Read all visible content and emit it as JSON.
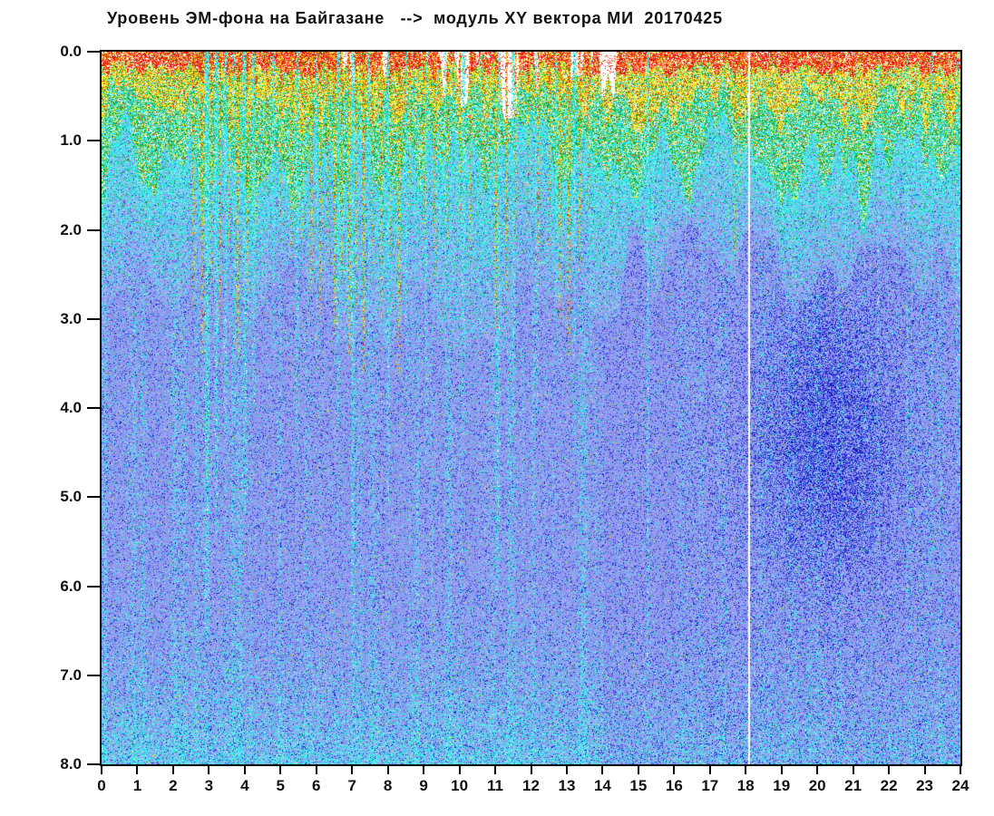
{
  "title": "Уровень ЭМ-фона на Байгазане   -->  модуль XY вектора МИ  20170425",
  "chart_data": {
    "type": "heatmap",
    "title": "Уровень ЭМ-фона на Байгазане   -->  модуль XY вектора МИ  20170425",
    "station": "Байгазане",
    "quantity": "модуль XY вектора МИ",
    "date": "20170425",
    "grid": false,
    "legend": false,
    "x_axis": {
      "min": 0,
      "max": 24,
      "ticks": [
        "0",
        "1",
        "2",
        "3",
        "4",
        "5",
        "6",
        "7",
        "8",
        "9",
        "10",
        "11",
        "12",
        "13",
        "14",
        "15",
        "16",
        "17",
        "18",
        "19",
        "20",
        "21",
        "22",
        "23",
        "24"
      ]
    },
    "y_axis": {
      "min": 0.0,
      "max": 8.0,
      "ticks": [
        "0.0",
        "1.0",
        "2.0",
        "3.0",
        "4.0",
        "5.0",
        "6.0",
        "7.0",
        "8.0"
      ]
    },
    "seed": 1234567,
    "gap_hour": 18.08,
    "gap_halfwidth": 0.03,
    "palette": {
      "white": "#ffffff",
      "red": "#ee1414",
      "orange": "#ff9212",
      "yellow": "#ffe71c",
      "green": "#1ea41e",
      "cyan": "#22e7e7",
      "cyan_light": "#84e9ee",
      "peri": "#8c93ec",
      "peri_light": "#a3a9f2",
      "peri_dim": "#7d85e8",
      "blue_dot": "#2b2fd9",
      "blue_dark": "#1212bd"
    },
    "bands_depth": {
      "red_top": [
        0.07,
        0.33
      ],
      "yellow": [
        0.22,
        0.9
      ],
      "green": [
        0.45,
        1.8
      ],
      "cyan_end_left": [
        2.3,
        3.6
      ],
      "cyan_end_right": [
        1.9,
        2.8
      ]
    },
    "white_gap_ranges": [
      [
        6.7,
        7.05,
        0.35
      ],
      [
        7.7,
        8.05,
        0.4
      ],
      [
        9.3,
        11.75,
        0.75
      ],
      [
        11.9,
        12.25,
        0.45
      ],
      [
        13.1,
        14.45,
        0.6
      ]
    ],
    "streak_fields": [
      "hour",
      "halfwidth_px",
      "depth",
      "strength"
    ],
    "warm_streaks": [
      [
        2.55,
        1,
        2.9,
        1
      ],
      [
        2.8,
        1.5,
        3.4,
        1
      ],
      [
        3.05,
        1,
        2.6,
        0.9
      ],
      [
        3.3,
        1,
        3.1,
        1
      ],
      [
        3.55,
        1,
        2.2,
        0.8
      ],
      [
        3.8,
        1.5,
        3.5,
        1
      ],
      [
        4.05,
        1,
        2.9,
        0.9
      ],
      [
        4.3,
        1,
        2.2,
        0.8
      ],
      [
        4.6,
        1,
        1.6,
        0.7
      ],
      [
        5.0,
        1,
        2.0,
        0.8
      ],
      [
        5.3,
        1,
        2.4,
        0.9
      ],
      [
        5.6,
        1,
        2.1,
        0.8
      ],
      [
        5.85,
        1.5,
        2.7,
        1
      ],
      [
        6.1,
        1,
        3.0,
        0.9
      ],
      [
        6.3,
        1,
        2.4,
        0.9
      ],
      [
        6.5,
        1.5,
        3.2,
        1
      ],
      [
        6.7,
        1,
        2.6,
        0.9
      ],
      [
        6.9,
        1.5,
        3.4,
        1
      ],
      [
        7.1,
        1,
        2.9,
        0.9
      ],
      [
        7.3,
        1.5,
        3.6,
        1
      ],
      [
        7.55,
        1,
        2.5,
        0.9
      ],
      [
        7.8,
        1,
        3.0,
        0.9
      ],
      [
        8.05,
        1,
        2.3,
        0.8
      ],
      [
        8.3,
        1.5,
        3.7,
        1
      ],
      [
        8.6,
        1,
        1.8,
        0.8
      ],
      [
        9.0,
        1,
        2.1,
        0.8
      ],
      [
        9.3,
        1,
        2.6,
        0.9
      ],
      [
        9.65,
        1,
        2.2,
        0.8
      ],
      [
        10.0,
        1,
        1.9,
        0.8
      ],
      [
        10.3,
        1,
        2.4,
        0.8
      ],
      [
        10.65,
        1,
        1.7,
        0.7
      ],
      [
        11.0,
        1.5,
        3.1,
        1
      ],
      [
        11.3,
        1,
        2.7,
        0.9
      ],
      [
        11.55,
        1,
        2.2,
        0.8
      ],
      [
        11.9,
        1,
        2.0,
        0.8
      ],
      [
        12.2,
        1,
        2.6,
        0.9
      ],
      [
        12.5,
        1,
        2.2,
        0.8
      ],
      [
        12.8,
        1,
        3.0,
        0.9
      ],
      [
        13.05,
        1.5,
        3.4,
        1
      ],
      [
        13.35,
        1,
        2.5,
        0.9
      ],
      [
        13.6,
        1,
        1.8,
        0.7
      ],
      [
        17.7,
        1,
        2.6,
        0.8
      ],
      [
        17.85,
        1,
        1.6,
        0.6
      ],
      [
        23.8,
        1,
        1.5,
        0.6
      ]
    ],
    "cyan_streaks": [
      [
        2.95,
        3,
        6.6,
        1
      ],
      [
        3.2,
        2,
        5.4,
        0.9
      ],
      [
        3.45,
        1.5,
        4.3,
        0.8
      ],
      [
        3.7,
        1.5,
        3.5,
        0.6
      ],
      [
        4.0,
        2.5,
        5.2,
        0.9
      ],
      [
        4.25,
        1.5,
        4.0,
        0.8
      ],
      [
        4.8,
        1,
        3.4,
        0.7
      ],
      [
        5.45,
        1.5,
        4.6,
        0.8
      ],
      [
        6.0,
        1,
        3.6,
        0.7
      ],
      [
        6.6,
        1.5,
        4.2,
        0.8
      ],
      [
        7.0,
        1.5,
        6.9,
        0.9
      ],
      [
        7.45,
        1,
        3.8,
        0.7
      ],
      [
        8.0,
        1.5,
        5.1,
        0.8
      ],
      [
        8.5,
        1,
        4.1,
        0.7
      ],
      [
        9.05,
        1.5,
        4.6,
        0.8
      ],
      [
        9.6,
        1,
        3.6,
        0.7
      ],
      [
        10.1,
        1.5,
        4.3,
        0.8
      ],
      [
        10.6,
        1,
        3.3,
        0.6
      ],
      [
        11.05,
        2.5,
        6.1,
        0.9
      ],
      [
        11.5,
        1.5,
        4.2,
        0.7
      ],
      [
        12.15,
        1.5,
        4.1,
        0.7
      ],
      [
        12.7,
        1,
        3.4,
        0.6
      ],
      [
        13.2,
        1.5,
        4.6,
        0.8
      ],
      [
        13.65,
        1,
        3.9,
        0.7
      ],
      [
        15.25,
        0.8,
        8,
        0.8
      ],
      [
        21.7,
        1,
        6,
        0.45
      ],
      [
        22.5,
        1,
        6.5,
        0.45
      ],
      [
        23.2,
        1,
        7,
        0.5
      ],
      [
        23.9,
        1.5,
        5,
        0.6
      ]
    ],
    "deep": {
      "blob": {
        "hour": 20.3,
        "depth": 4.3,
        "rh": 1.9,
        "rd": 1.5,
        "boost": 0.38
      },
      "bottom_start": 5.8
    }
  }
}
